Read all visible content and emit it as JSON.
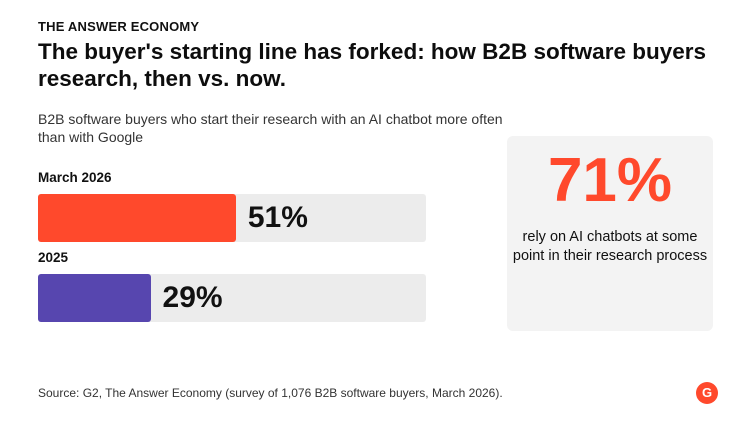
{
  "header": {
    "kicker": "THE ANSWER ECONOMY",
    "title": "The buyer's starting line has forked: how B2B software buyers research, then vs. now.",
    "subtitle": "B2B software buyers who start their research with an AI chatbot more often than with Google"
  },
  "chart_data": {
    "type": "bar",
    "orientation": "horizontal",
    "categories": [
      "March 2026",
      "2025"
    ],
    "values": [
      51,
      29
    ],
    "value_labels": [
      "51%",
      "29%"
    ],
    "colors": [
      "#ff492c",
      "#5746af"
    ],
    "xlim": [
      0,
      100
    ],
    "title": "",
    "xlabel": "",
    "ylabel": "",
    "grid": false
  },
  "callout": {
    "value": "71%",
    "text": "rely on AI chatbots at some point in their research process",
    "color": "#ff492c"
  },
  "footer": {
    "source": "Source: G2, The Answer Economy (survey of 1,076 B2B software buyers, March 2026).",
    "logo_text": "G"
  }
}
